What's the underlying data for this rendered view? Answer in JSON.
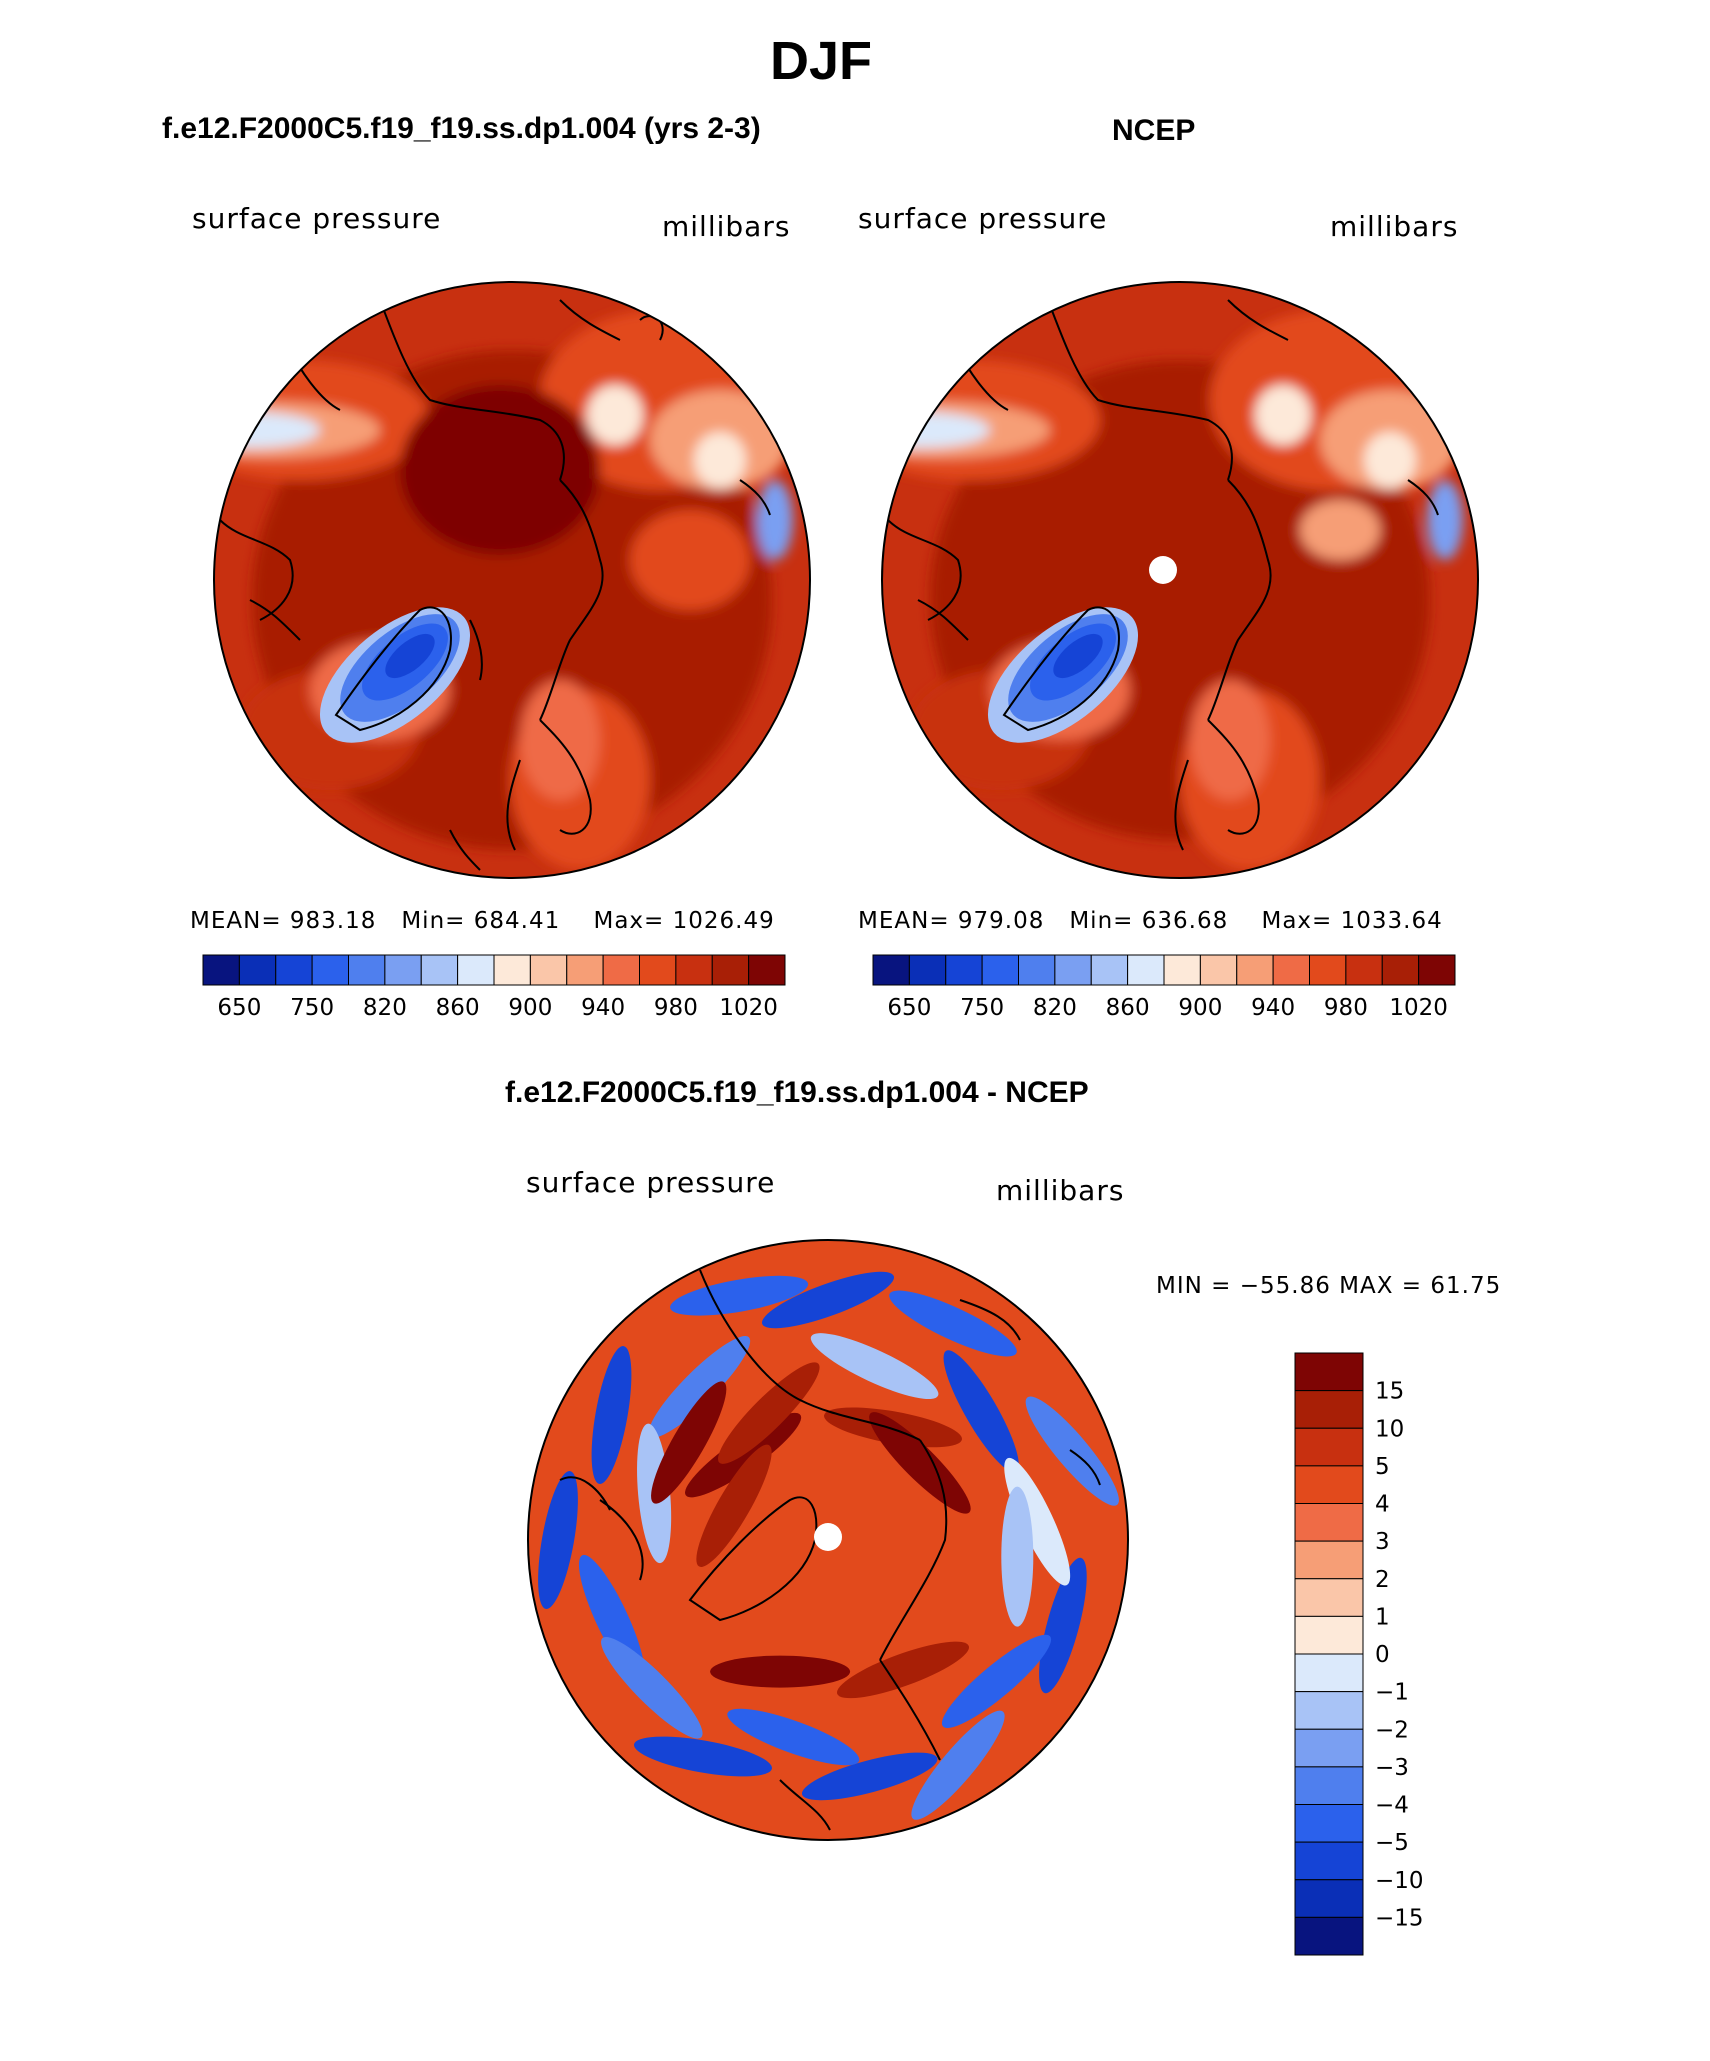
{
  "title": "DJF",
  "colors": {
    "scale_main": [
      "#08147f",
      "#0a2fb7",
      "#1544d6",
      "#2b61ec",
      "#4f7fee",
      "#7a9ff2",
      "#a8c3f6",
      "#dbe9fb",
      "#fde9d9",
      "#fac6a9",
      "#f69e76",
      "#ef6b46",
      "#e24a1c",
      "#c83010",
      "#a81f06",
      "#7e0504"
    ],
    "scale_diff": [
      "#08147f",
      "#0a2fb7",
      "#1544d6",
      "#2b61ec",
      "#4f7fee",
      "#7a9ff2",
      "#a8c3f6",
      "#dbe9fb",
      "#fde9d9",
      "#fac6a9",
      "#f69e76",
      "#ef6b46",
      "#e24a1c",
      "#c83010",
      "#a81f06",
      "#7e0504"
    ]
  },
  "chart_data": [
    {
      "type": "heatmap",
      "projection": "polar-stereographic",
      "title": "f.e12.F2000C5.f19_f19.ss.dp1.004 (yrs 2-3)",
      "variable_label": "surface pressure",
      "units_label": "millibars",
      "stats": {
        "mean_label": "MEAN=",
        "mean": "983.18",
        "min_label": "Min=",
        "min": "684.41",
        "max_label": "Max=",
        "max": "1026.49"
      },
      "colorbar_ticks": [
        "650",
        "750",
        "820",
        "860",
        "900",
        "940",
        "980",
        "1020"
      ]
    },
    {
      "type": "heatmap",
      "projection": "polar-stereographic",
      "title": "NCEP",
      "variable_label": "surface pressure",
      "units_label": "millibars",
      "stats": {
        "mean_label": "MEAN=",
        "mean": "979.08",
        "min_label": "Min=",
        "min": "636.68",
        "max_label": "Max=",
        "max": "1033.64"
      },
      "colorbar_ticks": [
        "650",
        "750",
        "820",
        "860",
        "900",
        "940",
        "980",
        "1020"
      ]
    },
    {
      "type": "heatmap",
      "projection": "polar-stereographic",
      "title": "f.e12.F2000C5.f19_f19.ss.dp1.004 - NCEP",
      "variable_label": "surface pressure",
      "units_label": "millibars",
      "stats_text": "MIN = −55.86 MAX =   61.75",
      "colorbar_ticks": [
        "15",
        "10",
        "5",
        "4",
        "3",
        "2",
        "1",
        "0",
        "−1",
        "−2",
        "−3",
        "−4",
        "−5",
        "−10",
        "−15"
      ]
    }
  ]
}
